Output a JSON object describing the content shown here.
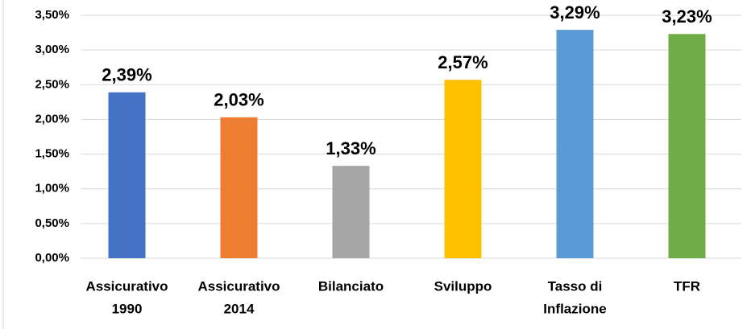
{
  "chart_data": {
    "type": "bar",
    "categories": [
      [
        "Assicurativo",
        "1990"
      ],
      [
        "Assicurativo",
        "2014"
      ],
      [
        "Bilanciato"
      ],
      [
        "Sviluppo"
      ],
      [
        "Tasso di",
        "Inflazione"
      ],
      [
        "TFR"
      ]
    ],
    "values": [
      2.39,
      2.03,
      1.33,
      2.57,
      3.29,
      3.23
    ],
    "value_labels": [
      "2,39%",
      "2,03%",
      "1,33%",
      "2,57%",
      "3,29%",
      "3,23%"
    ],
    "colors": [
      "#4472c4",
      "#ed7d31",
      "#a5a5a5",
      "#ffc000",
      "#5b9bd5",
      "#70ad47"
    ],
    "ylim": [
      0,
      3.5
    ],
    "yticks": [
      {
        "value": 0,
        "label": "0,00%"
      },
      {
        "value": 0.5,
        "label": "0,50%"
      },
      {
        "value": 1,
        "label": "1,00%"
      },
      {
        "value": 1.5,
        "label": "1,50%"
      },
      {
        "value": 2,
        "label": "2,00%"
      },
      {
        "value": 2.5,
        "label": "2,50%"
      },
      {
        "value": 3,
        "label": "3,00%"
      },
      {
        "value": 3.5,
        "label": "3,50%"
      }
    ],
    "grid": true
  }
}
